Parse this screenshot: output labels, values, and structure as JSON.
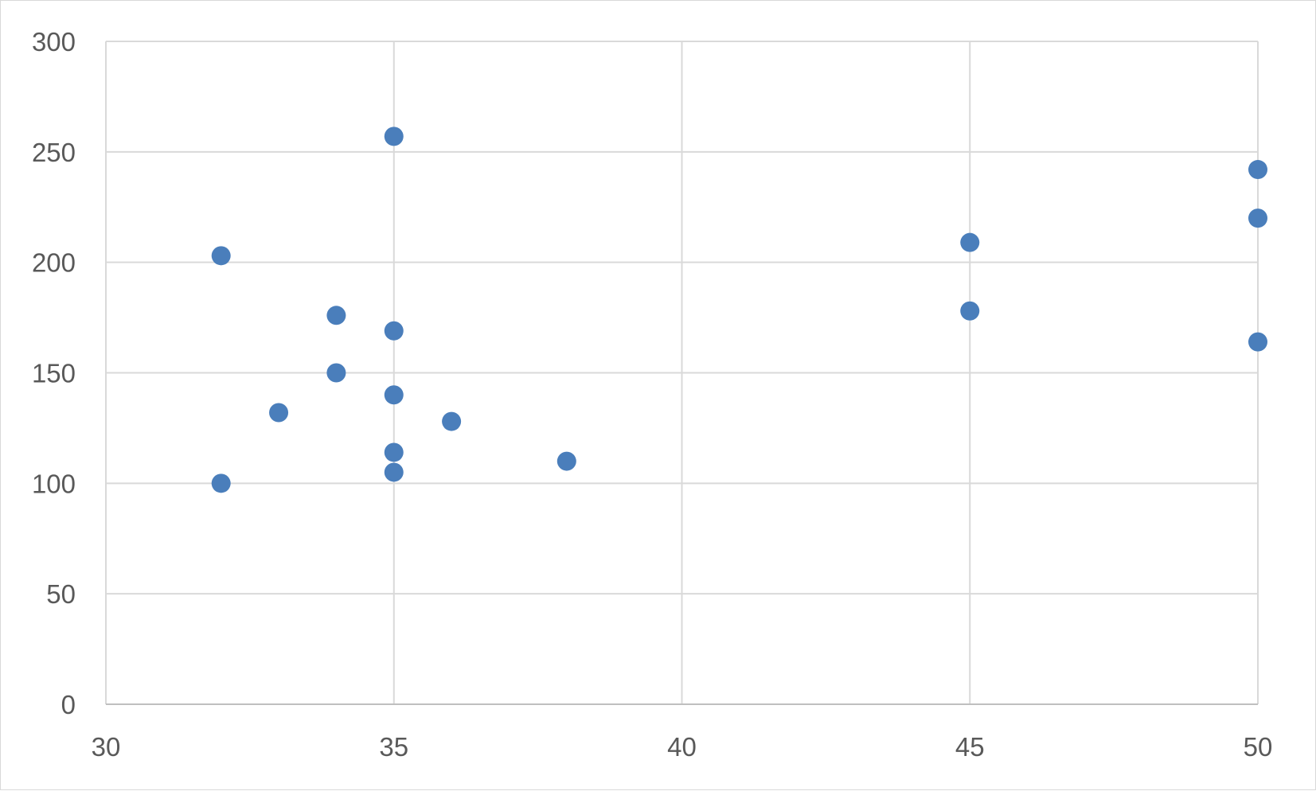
{
  "chart_data": {
    "type": "scatter",
    "title": "",
    "xlabel": "",
    "ylabel": "",
    "xlim": [
      30,
      50
    ],
    "ylim": [
      0,
      300
    ],
    "x_ticks": [
      30,
      35,
      40,
      45,
      50
    ],
    "y_ticks": [
      0,
      50,
      100,
      150,
      200,
      250,
      300
    ],
    "x_tick_labels": [
      "30",
      "35",
      "40",
      "45",
      "50"
    ],
    "y_tick_labels": [
      "0",
      "50",
      "100",
      "150",
      "200",
      "250",
      "300"
    ],
    "grid": true,
    "legend": "none",
    "marker_color": "#4a7ebb",
    "series": [
      {
        "points": [
          {
            "x": 32,
            "y": 203
          },
          {
            "x": 32,
            "y": 100
          },
          {
            "x": 33,
            "y": 132
          },
          {
            "x": 34,
            "y": 176
          },
          {
            "x": 34,
            "y": 150
          },
          {
            "x": 35,
            "y": 257
          },
          {
            "x": 35,
            "y": 169
          },
          {
            "x": 35,
            "y": 140
          },
          {
            "x": 35,
            "y": 114
          },
          {
            "x": 35,
            "y": 105
          },
          {
            "x": 36,
            "y": 128
          },
          {
            "x": 38,
            "y": 110
          },
          {
            "x": 45,
            "y": 209
          },
          {
            "x": 45,
            "y": 178
          },
          {
            "x": 50,
            "y": 242
          },
          {
            "x": 50,
            "y": 220
          },
          {
            "x": 50,
            "y": 164
          }
        ]
      }
    ]
  }
}
